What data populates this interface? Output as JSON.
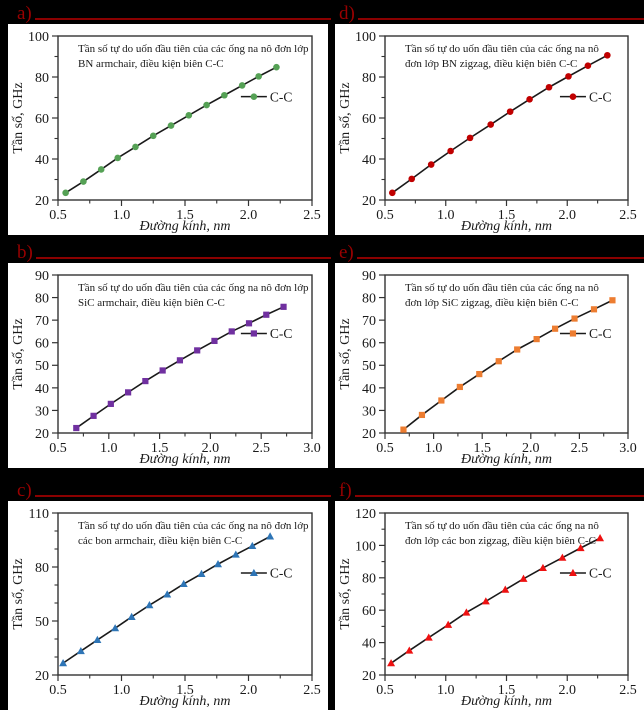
{
  "figure": {
    "background": "#000000",
    "panel_background": "#ffffff",
    "panel_label_color": "#990000",
    "rule_color": "#8b0000",
    "axis_color": "#333333",
    "series_line_color": "#1a1a1a"
  },
  "chart_data": [
    {
      "id": "a",
      "panel_label": "a)",
      "type": "line",
      "title_lines": [
        "Tần số tự do uốn đầu tiên của các ống na nô đơn lớp",
        "BN armchair,  điều kiện biên C-C"
      ],
      "legend_label": "C-C",
      "marker": "circle",
      "marker_color": "#55A155",
      "xlabel": "Đường kính, nm",
      "ylabel": "Tần số, GHz",
      "xlim": [
        0.5,
        2.5
      ],
      "ylim": [
        20,
        100
      ],
      "x_ticks": [
        0.5,
        1.0,
        1.5,
        2.0,
        2.5
      ],
      "x_minor_step": 0.25,
      "y_ticks": [
        20,
        40,
        60,
        80,
        100
      ],
      "y_minor_step": 10,
      "x": [
        0.56,
        0.7,
        0.84,
        0.97,
        1.11,
        1.25,
        1.39,
        1.53,
        1.67,
        1.81,
        1.95,
        2.08,
        2.22
      ],
      "y": [
        23.5,
        29.0,
        34.9,
        40.5,
        45.9,
        51.3,
        56.3,
        61.3,
        66.3,
        71.1,
        75.9,
        80.3,
        84.8
      ]
    },
    {
      "id": "d",
      "panel_label": "d)",
      "type": "line",
      "title_lines": [
        "Tần số tự do uốn đầu tiên của các ống na nô",
        "đơn lớp BN zigzag,  điều kiện biên C-C"
      ],
      "legend_label": "C-C",
      "marker": "circle",
      "marker_color": "#C00000",
      "xlabel": "Đường kính, nm",
      "ylabel": "Tần số, GHz",
      "xlim": [
        0.5,
        2.5
      ],
      "ylim": [
        20,
        100
      ],
      "x_ticks": [
        0.5,
        1.0,
        1.5,
        2.0,
        2.5
      ],
      "x_minor_step": 0.25,
      "y_ticks": [
        20,
        40,
        60,
        80,
        100
      ],
      "y_minor_step": 10,
      "x": [
        0.56,
        0.72,
        0.88,
        1.04,
        1.2,
        1.37,
        1.53,
        1.69,
        1.85,
        2.01,
        2.17,
        2.33
      ],
      "y": [
        23.5,
        30.3,
        37.3,
        43.9,
        50.3,
        56.8,
        63.1,
        69.1,
        75.0,
        80.3,
        85.5,
        90.6
      ]
    },
    {
      "id": "b",
      "panel_label": "b)",
      "type": "line",
      "title_lines": [
        "Tần số tự do uốn đầu tiên của các ống na nô đơn lớp",
        "SiC armchair,  điều kiện biên C-C"
      ],
      "legend_label": "C-C",
      "marker": "square",
      "marker_color": "#7030A0",
      "xlabel": "Đường kính, nm",
      "ylabel": "Tần số, GHz",
      "xlim": [
        0.5,
        3.0
      ],
      "ylim": [
        20,
        90
      ],
      "x_ticks": [
        0.5,
        1.0,
        1.5,
        2.0,
        2.5,
        3.0
      ],
      "x_minor_step": 0.25,
      "y_ticks": [
        20,
        30,
        40,
        50,
        60,
        70,
        80,
        90
      ],
      "y_minor_step": null,
      "x": [
        0.68,
        0.85,
        1.02,
        1.19,
        1.36,
        1.53,
        1.7,
        1.87,
        2.04,
        2.21,
        2.38,
        2.55,
        2.72
      ],
      "y": [
        22.2,
        27.6,
        32.9,
        38.0,
        43.0,
        47.7,
        52.2,
        56.6,
        60.8,
        65.0,
        68.6,
        72.4,
        75.9
      ]
    },
    {
      "id": "e",
      "panel_label": "e)",
      "type": "line",
      "title_lines": [
        "Tần số tự do uốn đầu tiên của các ống na nô",
        "đơn lớp SiC zigzag,  điều kiện biên C-C"
      ],
      "legend_label": "C-C",
      "marker": "square",
      "marker_color": "#ED7D31",
      "xlabel": "Đường kính, nm",
      "ylabel": "Tần số, GHz",
      "xlim": [
        0.5,
        3.0
      ],
      "ylim": [
        20,
        90
      ],
      "x_ticks": [
        0.5,
        1.0,
        1.5,
        2.0,
        2.5,
        3.0
      ],
      "x_minor_step": 0.25,
      "y_ticks": [
        20,
        30,
        40,
        50,
        60,
        70,
        80,
        90
      ],
      "y_minor_step": null,
      "x": [
        0.69,
        0.88,
        1.08,
        1.27,
        1.47,
        1.67,
        1.86,
        2.06,
        2.25,
        2.45,
        2.65,
        2.84
      ],
      "y": [
        21.5,
        28.0,
        34.4,
        40.4,
        46.1,
        51.8,
        57.0,
        61.6,
        66.2,
        70.7,
        74.8,
        78.8
      ]
    },
    {
      "id": "c",
      "panel_label": "c)",
      "type": "line",
      "title_lines": [
        "Tần số tự do uốn đầu tiên của các ống na nô đơn lớp",
        "các bon armchair,  điều kiện biên C-C"
      ],
      "legend_label": "C-C",
      "marker": "triangle",
      "marker_color": "#2E75B6",
      "xlabel": "Đường kính, nm",
      "ylabel": "Tần số, GHz",
      "xlim": [
        0.5,
        2.5
      ],
      "ylim": [
        20,
        110
      ],
      "x_ticks": [
        0.5,
        1.0,
        1.5,
        2.0,
        2.5
      ],
      "x_minor_step": 0.25,
      "y_ticks": [
        20,
        50,
        80,
        110
      ],
      "y_minor_step": 10,
      "x": [
        0.54,
        0.68,
        0.81,
        0.95,
        1.08,
        1.22,
        1.36,
        1.49,
        1.63,
        1.76,
        1.9,
        2.03,
        2.17
      ],
      "y": [
        26.6,
        33.3,
        39.5,
        46.0,
        52.3,
        58.8,
        64.8,
        70.6,
        76.2,
        81.6,
        86.9,
        91.7,
        97.0
      ]
    },
    {
      "id": "f",
      "panel_label": "f)",
      "type": "line",
      "title_lines": [
        "Tần số tự do uốn đầu tiên của các ống na nô",
        "đơn lớp các bon zigzag,  điều kiện biên C-C"
      ],
      "legend_label": "C-C",
      "marker": "triangle",
      "marker_color": "#EE1111",
      "xlabel": "Đường kính, nm",
      "ylabel": "Tần số, GHz",
      "xlim": [
        0.5,
        2.5
      ],
      "ylim": [
        20,
        120
      ],
      "x_ticks": [
        0.5,
        1.0,
        1.5,
        2.0,
        2.5
      ],
      "x_minor_step": 0.25,
      "y_ticks": [
        20,
        40,
        60,
        80,
        100,
        120
      ],
      "y_minor_step": 10,
      "x": [
        0.55,
        0.7,
        0.86,
        1.02,
        1.17,
        1.33,
        1.49,
        1.64,
        1.8,
        1.96,
        2.11,
        2.27
      ],
      "y": [
        27.3,
        35.1,
        43.1,
        51.0,
        58.6,
        65.5,
        72.7,
        79.4,
        86.1,
        92.4,
        98.4,
        104.5
      ]
    }
  ]
}
